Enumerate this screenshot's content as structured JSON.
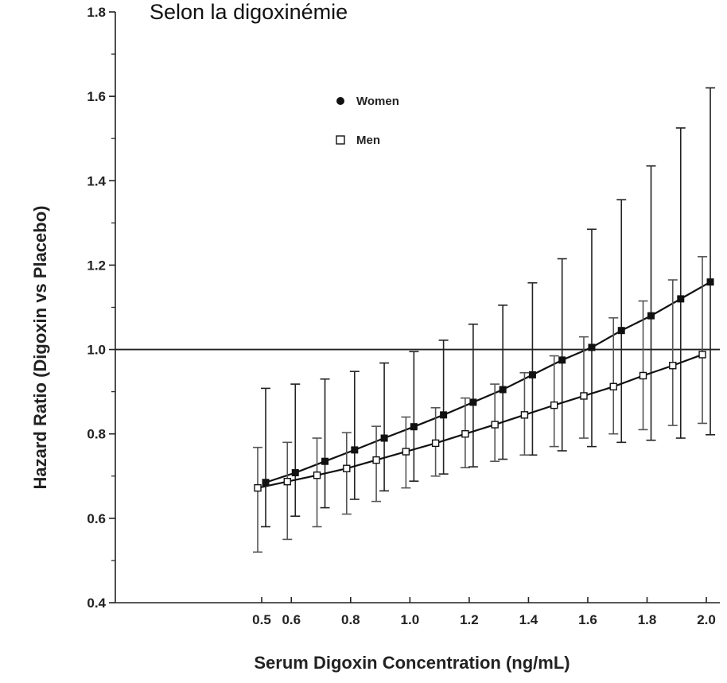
{
  "chart_data": {
    "type": "line",
    "title": "Selon la digoxinémie",
    "xlabel": "Serum Digoxin Concentration (ng/mL)",
    "ylabel": "Hazard Ratio (Digoxin vs Placebo)",
    "xlim": [
      0.5,
      2.0
    ],
    "ylim": [
      0.4,
      1.8
    ],
    "x_ticks": [
      0.5,
      0.6,
      0.8,
      1.0,
      1.2,
      1.4,
      1.6,
      1.8,
      2.0
    ],
    "x_tick_labels": [
      "0.5",
      "0.6",
      "0.8",
      "1.0",
      "1.2",
      "1.4",
      "1.6",
      "1.8",
      "2.0"
    ],
    "y_ticks": [
      0.4,
      0.6,
      0.8,
      1.0,
      1.2,
      1.4,
      1.6,
      1.8
    ],
    "y_tick_labels": [
      "0.4",
      "0.6",
      "0.8",
      "1.0",
      "1.2",
      "1.4",
      "1.6",
      "1.8"
    ],
    "reference_line": 1.0,
    "grid": false,
    "legend_position": "top-center",
    "x": [
      0.5,
      0.6,
      0.7,
      0.8,
      0.9,
      1.0,
      1.1,
      1.2,
      1.3,
      1.4,
      1.5,
      1.6,
      1.7,
      1.8,
      1.9,
      2.0
    ],
    "series": [
      {
        "name": "Women",
        "marker": "filled-circle",
        "color": "#111111",
        "values": [
          0.685,
          0.708,
          0.735,
          0.762,
          0.79,
          0.817,
          0.845,
          0.875,
          0.905,
          0.94,
          0.975,
          1.005,
          1.045,
          1.08,
          1.12,
          1.16
        ],
        "lower": [
          0.58,
          0.605,
          0.625,
          0.645,
          0.665,
          0.688,
          0.705,
          0.722,
          0.74,
          0.75,
          0.76,
          0.77,
          0.78,
          0.785,
          0.79,
          0.798
        ],
        "upper": [
          0.908,
          0.918,
          0.93,
          0.948,
          0.968,
          0.995,
          1.022,
          1.06,
          1.105,
          1.158,
          1.215,
          1.285,
          1.355,
          1.435,
          1.525,
          1.62
        ]
      },
      {
        "name": "Men",
        "marker": "open-square",
        "color": "#111111",
        "values": [
          0.672,
          0.687,
          0.702,
          0.718,
          0.738,
          0.758,
          0.778,
          0.8,
          0.822,
          0.845,
          0.868,
          0.89,
          0.912,
          0.938,
          0.962,
          0.988
        ],
        "lower": [
          0.52,
          0.55,
          0.58,
          0.61,
          0.64,
          0.672,
          0.7,
          0.72,
          0.735,
          0.75,
          0.77,
          0.79,
          0.8,
          0.81,
          0.82,
          0.825
        ],
        "upper": [
          0.768,
          0.78,
          0.79,
          0.803,
          0.818,
          0.84,
          0.862,
          0.885,
          0.918,
          0.945,
          0.985,
          1.03,
          1.075,
          1.115,
          1.165,
          1.22
        ]
      }
    ]
  }
}
